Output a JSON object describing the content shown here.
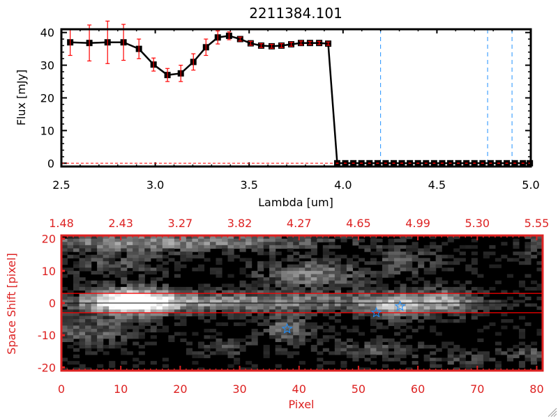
{
  "chart_data": [
    {
      "type": "line",
      "title": "2211384.101",
      "xlabel": "Lambda [um]",
      "ylabel": "Flux [mJy]",
      "xlim": [
        2.5,
        5.0
      ],
      "ylim": [
        -1,
        41
      ],
      "xticks": [
        "2.5",
        "3.0",
        "3.5",
        "4.0",
        "4.5",
        "5.0"
      ],
      "xtick_values": [
        2.5,
        3.0,
        3.5,
        4.0,
        4.5,
        5.0
      ],
      "yticks": [
        "0",
        "10",
        "20",
        "30",
        "40"
      ],
      "ytick_values": [
        0,
        10,
        20,
        30,
        40
      ],
      "series": [
        {
          "x": [
            2.547,
            2.649,
            2.746,
            2.831,
            2.913,
            2.991,
            3.065,
            3.136,
            3.203,
            3.27,
            3.333,
            3.393,
            3.452,
            3.508,
            3.564,
            3.62,
            3.672,
            3.724,
            3.776,
            3.824,
            3.873,
            3.921,
            3.969,
            4.012,
            4.055,
            4.098,
            4.141,
            4.184,
            4.227,
            4.27,
            4.313,
            4.356,
            4.399,
            4.442,
            4.485,
            4.528,
            4.571,
            4.614,
            4.657,
            4.7,
            4.743,
            4.786,
            4.829,
            4.872,
            4.915,
            4.958,
            4.995
          ],
          "y": [
            37,
            36.8,
            37,
            37,
            35,
            30.2,
            27,
            27.5,
            31,
            35.5,
            38.5,
            39,
            38,
            36.7,
            36,
            35.8,
            36,
            36.4,
            36.8,
            36.8,
            36.8,
            36.6,
            0,
            0,
            0,
            0,
            0,
            0,
            0,
            0,
            0,
            0,
            0,
            0,
            0,
            0,
            0,
            0,
            0,
            0,
            0,
            0,
            0,
            0,
            0,
            0,
            0
          ],
          "yerr": [
            4,
            5.5,
            6.5,
            5.5,
            3,
            2,
            2,
            2.5,
            2.5,
            2.5,
            2,
            1.2,
            0.6,
            0.6,
            0.6,
            0.6,
            0.6,
            0.6,
            0.6,
            0.5,
            0.5,
            0.5,
            0,
            0,
            0,
            0,
            0,
            0,
            0,
            0,
            0,
            0,
            0,
            0,
            0,
            0,
            0,
            0,
            0,
            0,
            0,
            0,
            0,
            0,
            0,
            0,
            0
          ],
          "color": "#000000",
          "error_color": "#ff0000",
          "marker": "square"
        }
      ],
      "vlines": [
        4.2,
        4.77,
        4.9
      ],
      "vline_color": "#1e90ff",
      "hline": 0,
      "hline_color": "#ff0000",
      "grid": false
    },
    {
      "type": "heatmap",
      "colormap": "grayscale",
      "xlabel": "Pixel",
      "ylabel": "Space Shift [pixel]",
      "xlim": [
        0,
        81
      ],
      "ylim": [
        -21,
        21
      ],
      "xticks": [
        "0",
        "10",
        "20",
        "30",
        "40",
        "50",
        "60",
        "70",
        "80"
      ],
      "xtick_values": [
        0,
        10,
        20,
        30,
        40,
        50,
        60,
        70,
        80
      ],
      "yticks": [
        "-20",
        "-10",
        "0",
        "10",
        "20"
      ],
      "ytick_values": [
        -20,
        -10,
        0,
        10,
        20
      ],
      "top_axis_labels": [
        "1.48",
        "2.43",
        "3.27",
        "3.82",
        "4.27",
        "4.65",
        "4.99",
        "5.30",
        "5.55"
      ],
      "hlines_red": [
        -3,
        3
      ],
      "hline_black": 0,
      "axis_color": "#dd2222",
      "star_color": "#1e90ff",
      "stars": [
        {
          "x": 38,
          "y": -8
        },
        {
          "x": 53,
          "y": -3
        },
        {
          "x": 57,
          "y": -1
        }
      ]
    }
  ]
}
